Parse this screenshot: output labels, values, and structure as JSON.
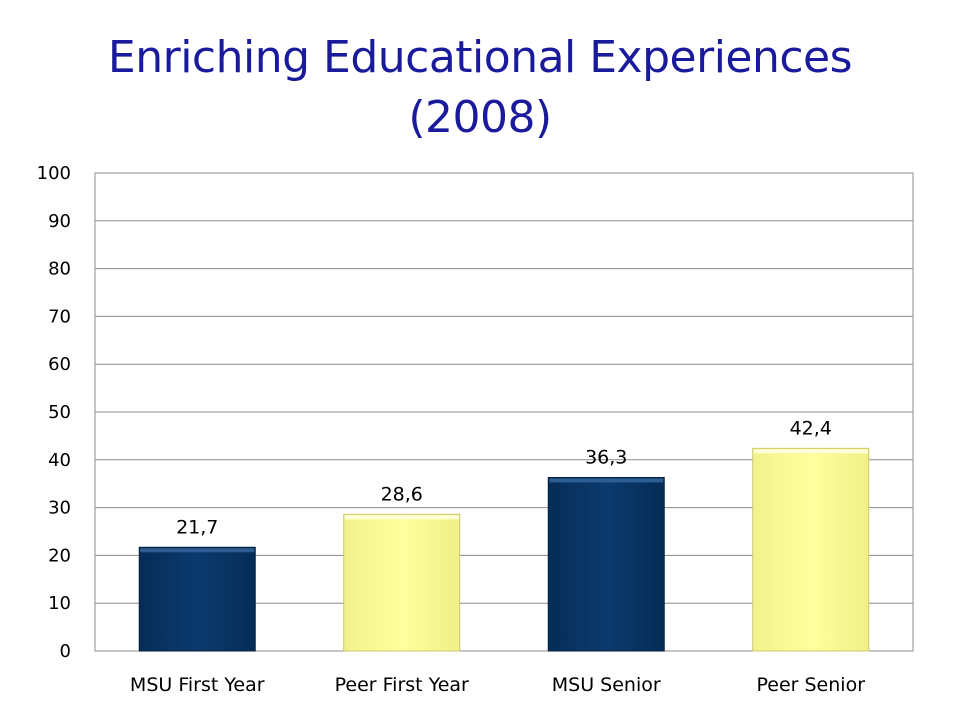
{
  "chart_data": {
    "type": "bar",
    "title_line1": "Enriching Educational Experiences",
    "title_line2": "(2008)",
    "categories": [
      "MSU First Year",
      "Peer First Year",
      "MSU Senior",
      "Peer Senior"
    ],
    "values": [
      21.7,
      28.6,
      36.3,
      42.4
    ],
    "data_labels": [
      "21,7",
      "28,6",
      "36,3",
      "42,4"
    ],
    "bar_colors": [
      "#0b3a6e",
      "#ffff99",
      "#0b3a6e",
      "#ffff99"
    ],
    "ylim": [
      0,
      100
    ],
    "yticks": [
      "0",
      "10",
      "20",
      "30",
      "40",
      "50",
      "60",
      "70",
      "80",
      "90",
      "100"
    ],
    "grid": true,
    "xlabel": "",
    "ylabel": ""
  }
}
